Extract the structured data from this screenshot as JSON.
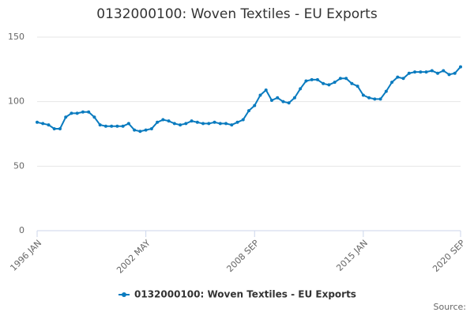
{
  "chart_data": {
    "type": "line",
    "title": "0132000100: Woven Textiles - EU Exports",
    "categories": [
      "1996 JAN",
      null,
      null,
      null,
      null,
      null,
      null,
      null,
      null,
      null,
      null,
      null,
      null,
      null,
      null,
      null,
      null,
      null,
      null,
      "2002 MAY",
      null,
      null,
      null,
      null,
      null,
      null,
      null,
      null,
      null,
      null,
      null,
      null,
      null,
      null,
      null,
      null,
      null,
      null,
      "2008 SEP",
      null,
      null,
      null,
      null,
      null,
      null,
      null,
      null,
      null,
      null,
      null,
      null,
      null,
      null,
      null,
      null,
      null,
      null,
      "2015 JAN",
      null,
      null,
      null,
      null,
      null,
      null,
      null,
      null,
      null,
      null,
      null,
      null,
      null,
      null,
      null,
      null,
      "2020 SEP"
    ],
    "series": [
      {
        "name": "0132000100: Woven Textiles - EU Exports",
        "color": "#0a7bbf",
        "values": [
          84,
          83,
          82,
          79,
          79,
          88,
          91,
          91,
          92,
          92,
          88,
          82,
          81,
          81,
          81,
          81,
          83,
          78,
          77,
          78,
          79,
          84,
          86,
          85,
          83,
          82,
          83,
          85,
          84,
          83,
          83,
          84,
          83,
          83,
          82,
          84,
          86,
          93,
          97,
          105,
          109,
          101,
          103,
          100,
          99,
          103,
          110,
          116,
          117,
          117,
          114,
          113,
          115,
          118,
          118,
          114,
          112,
          105,
          103,
          102,
          102,
          108,
          115,
          119,
          118,
          122,
          123,
          123,
          123,
          124,
          122,
          124,
          121,
          122,
          127
        ]
      }
    ],
    "ylim": [
      0,
      150
    ],
    "yticks": [
      0,
      50,
      100,
      150
    ],
    "grid": true,
    "legend": "bottom",
    "source": "Source:"
  }
}
